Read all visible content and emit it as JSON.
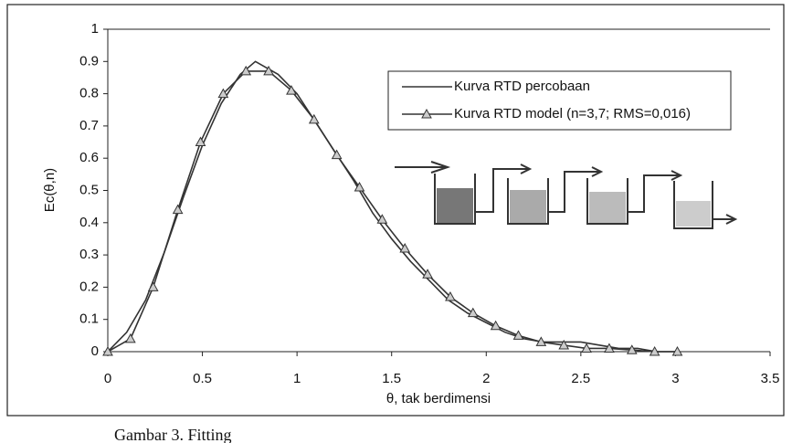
{
  "chart_data": {
    "type": "line",
    "xlabel": "θ, tak berdimensi",
    "ylabel": "Ec(θ,n)",
    "caption": "Gambar 3. Fitting",
    "xlim": [
      0,
      3.5
    ],
    "xticks": [
      0,
      0.5,
      1,
      1.5,
      2,
      2.5,
      3,
      3.5
    ],
    "ylim": [
      0,
      1
    ],
    "yticks": [
      0,
      0.1,
      0.2,
      0.3,
      0.4,
      0.5,
      0.6,
      0.7,
      0.8,
      0.9,
      1
    ],
    "legend": "upper right",
    "series": [
      {
        "name": "Kurva RTD percobaan",
        "color": "#333333",
        "marker": "none",
        "x": [
          0,
          0.1,
          0.2,
          0.3,
          0.4,
          0.5,
          0.6,
          0.7,
          0.78,
          0.9,
          1.0,
          1.1,
          1.2,
          1.3,
          1.4,
          1.5,
          1.6,
          1.7,
          1.8,
          1.9,
          2.0,
          2.1,
          2.2,
          2.3,
          2.4,
          2.5,
          2.6,
          2.7,
          2.8,
          2.9,
          3.0
        ],
        "values": [
          0,
          0.06,
          0.16,
          0.31,
          0.48,
          0.64,
          0.77,
          0.86,
          0.9,
          0.86,
          0.8,
          0.71,
          0.62,
          0.53,
          0.43,
          0.35,
          0.28,
          0.22,
          0.16,
          0.12,
          0.09,
          0.06,
          0.04,
          0.03,
          0.03,
          0.03,
          0.02,
          0.01,
          0.01,
          0,
          0
        ]
      },
      {
        "name": "Kurva RTD model (n=3,7; RMS=0,016)",
        "color": "#333333",
        "marker": "triangle",
        "x": [
          0,
          0.12,
          0.24,
          0.37,
          0.49,
          0.61,
          0.73,
          0.85,
          0.97,
          1.09,
          1.21,
          1.33,
          1.45,
          1.57,
          1.69,
          1.81,
          1.93,
          2.05,
          2.17,
          2.29,
          2.41,
          2.53,
          2.65,
          2.77,
          2.89,
          3.01
        ],
        "values": [
          0,
          0.04,
          0.2,
          0.44,
          0.65,
          0.8,
          0.87,
          0.87,
          0.81,
          0.72,
          0.61,
          0.51,
          0.41,
          0.32,
          0.24,
          0.17,
          0.12,
          0.08,
          0.05,
          0.03,
          0.02,
          0.01,
          0.01,
          0.005,
          0,
          0
        ]
      }
    ]
  }
}
